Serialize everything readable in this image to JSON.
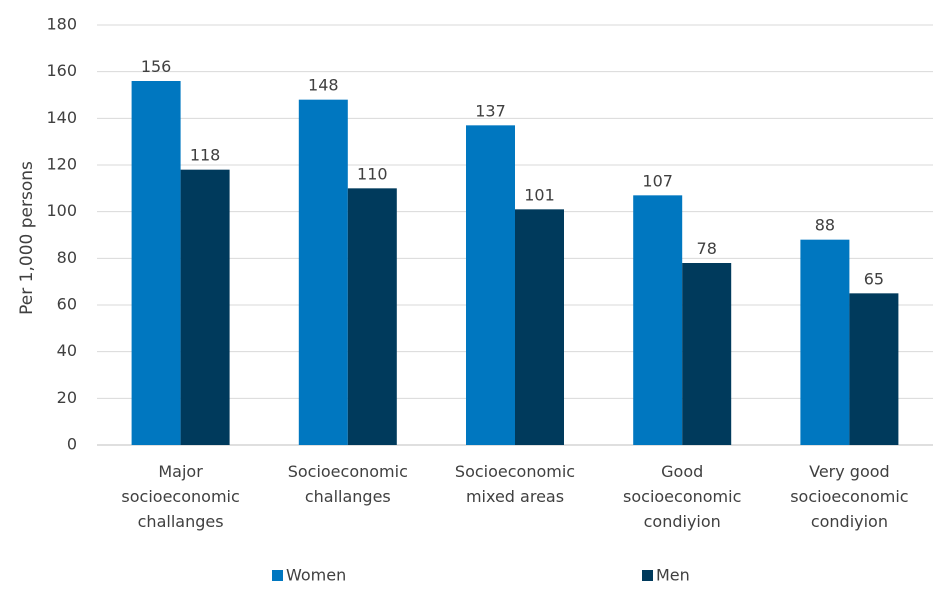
{
  "chart_data": {
    "type": "bar",
    "ylabel": "Per 1,000 persons",
    "ylim": [
      0,
      180
    ],
    "ytick_step": 20,
    "grid": true,
    "legend_position": "bottom",
    "categories": [
      [
        "Major",
        "socioeconomic",
        "challanges"
      ],
      [
        "Socioeconomic",
        "challanges"
      ],
      [
        "Socioeconomic",
        "mixed areas"
      ],
      [
        "Good",
        "socioeconomic",
        "condiyion"
      ],
      [
        "Very good",
        "socioeconomic",
        "condiyion"
      ]
    ],
    "series": [
      {
        "name": "Women",
        "color": "#0077C0",
        "values": [
          156,
          148,
          137,
          107,
          88
        ]
      },
      {
        "name": "Men",
        "color": "#003A5C",
        "values": [
          118,
          110,
          101,
          78,
          65
        ]
      }
    ]
  }
}
